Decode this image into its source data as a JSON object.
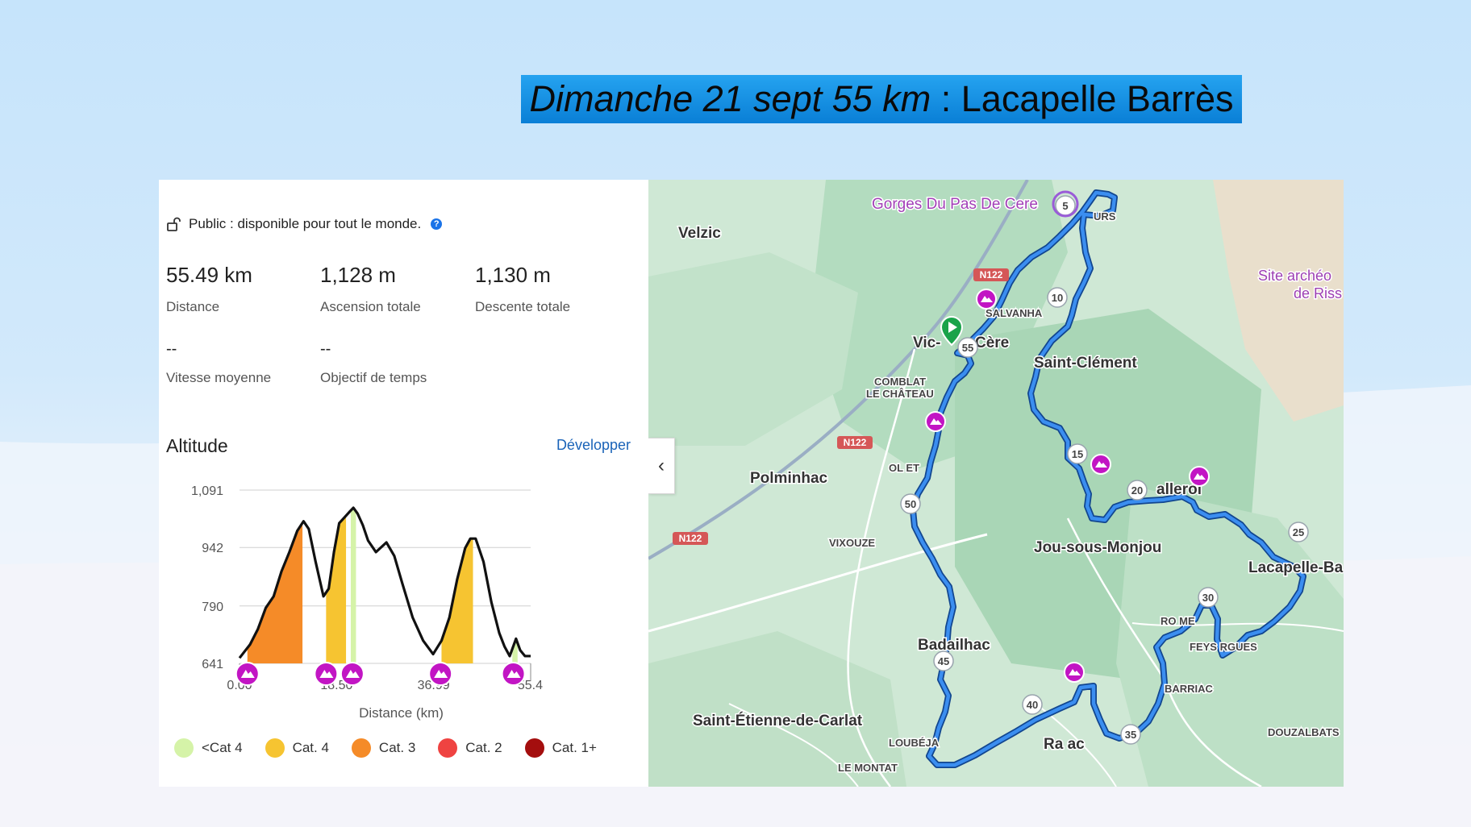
{
  "title": {
    "italic_part": "Dimanche 21 sept 55 km",
    "rest": " : Lacapelle Barrès"
  },
  "visibility": {
    "icon": "unlock-icon",
    "text": "Public : disponible pour tout le monde.",
    "help": "?"
  },
  "stats": [
    {
      "value": "55.49 km",
      "label": "Distance"
    },
    {
      "value": "1,128 m",
      "label": "Ascension totale"
    },
    {
      "value": "1,130 m",
      "label": "Descente totale"
    },
    {
      "value": "--",
      "label": "Vitesse moyenne"
    },
    {
      "value": "--",
      "label": "Objectif de temps"
    }
  ],
  "altitude": {
    "title": "Altitude",
    "expand_label": "Développer"
  },
  "chart_data": {
    "type": "area",
    "xlabel": "Distance (km)",
    "ylabel": "",
    "x_ticks": [
      "0.00",
      "18.50",
      "36.99",
      "55.4"
    ],
    "y_ticks": [
      "641",
      "790",
      "942",
      "1,091"
    ],
    "xlim": [
      0,
      55.49
    ],
    "ylim": [
      641,
      1091
    ],
    "grid": true,
    "series": [
      {
        "x": [
          0,
          2,
          3.5,
          5,
          6.5,
          8,
          9.5,
          11,
          12.2,
          13.2,
          14.5,
          16,
          17,
          18,
          19,
          20,
          21,
          21.7,
          22.5,
          23.5,
          24.5,
          26,
          28,
          29.5,
          31,
          33,
          35,
          36.9,
          38.5,
          40,
          41.5,
          43,
          44,
          45,
          46.5,
          48,
          49.5,
          50.5,
          51.5,
          52.7,
          53.5,
          54.4,
          55.49
        ],
        "y": [
          655,
          690,
          730,
          785,
          815,
          880,
          930,
          985,
          1010,
          990,
          905,
          815,
          835,
          930,
          1005,
          1020,
          1035,
          1045,
          1030,
          1000,
          960,
          930,
          955,
          920,
          850,
          760,
          700,
          665,
          700,
          760,
          860,
          940,
          965,
          965,
          905,
          800,
          720,
          685,
          660,
          705,
          675,
          660,
          660
        ]
      }
    ],
    "climbs": [
      {
        "category": "Cat. 3",
        "start": 1.5,
        "end": 12.0
      },
      {
        "category": "Cat. 4",
        "start": 16.5,
        "end": 20.3
      },
      {
        "category": "<Cat 4",
        "start": 21.2,
        "end": 22.2
      },
      {
        "category": "Cat. 4",
        "start": 38.5,
        "end": 44.5
      },
      {
        "category": "<Cat 4",
        "start": 52.0,
        "end": 53.0
      }
    ],
    "climb_markers_km": [
      1.5,
      16.5,
      21.5,
      38.3,
      52.2
    ]
  },
  "legend": [
    {
      "label": "<Cat 4",
      "color": "#d5f3a8"
    },
    {
      "label": "Cat. 4",
      "color": "#f6c431"
    },
    {
      "label": "Cat. 3",
      "color": "#f58b28"
    },
    {
      "label": "Cat. 2",
      "color": "#ef4341"
    },
    {
      "label": "Cat. 1+",
      "color": "#a40e0e"
    }
  ],
  "map": {
    "labels": {
      "gorges": "Gorges Du Pas De Cere",
      "velzic": "Velzic",
      "salvanha": "SALVANHA",
      "vic": "Vic-",
      "cere": "Cère",
      "saint_clement": "Saint-Clément",
      "comblat": "COMBLAT",
      "chateau": "LE CHÂTEAU",
      "site1": "Site archéo",
      "site2": "de Riss",
      "polminhac": "Polminhac",
      "olmet": "OL  ET",
      "vixouze": "VIXOUZE",
      "jou": "Jou-sous-Monjou",
      "lacapelle": "Lacapelle-Ba",
      "thiezac_frag": "allerol",
      "badailhac": "Badailhac",
      "feys": "FEYS RGUES",
      "promme": "RO  ME",
      "barriac": "BARRIAC",
      "douzalbats": "DOUZALBATS",
      "st_etienne": "Saint-Étienne-de-Carlat",
      "loubeja": "LOUBÉJA",
      "raulhac": "Ra   ac",
      "montat": "LE MONTAT",
      "fours": "URS",
      "n122a": "N122",
      "n122b": "N122",
      "n122c": "N122"
    },
    "km_markers": [
      "5",
      "10",
      "15",
      "20",
      "25",
      "30",
      "35",
      "40",
      "45",
      "50",
      "55"
    ],
    "route_color": "#1f6fd1",
    "collapse_icon": "chevron-left-icon"
  }
}
